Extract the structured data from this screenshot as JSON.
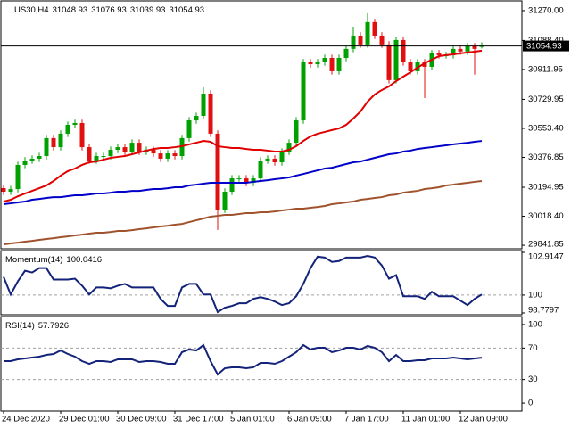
{
  "chart_data": [
    {
      "type": "candlestick",
      "title": "US30,H4",
      "categories": [
        "24 Dec 2020",
        null,
        null,
        null,
        null,
        null,
        null,
        null,
        "29 Dec 01:00",
        null,
        null,
        null,
        null,
        null,
        null,
        null,
        "30 Dec 09:00",
        null,
        null,
        null,
        null,
        null,
        null,
        null,
        "31 Dec 17:00",
        null,
        null,
        null,
        null,
        null,
        null,
        null,
        "5 Jan 01:00",
        null,
        null,
        null,
        null,
        null,
        null,
        null,
        "6 Jan 09:00",
        null,
        null,
        null,
        null,
        null,
        null,
        null,
        "7 Jan 17:00",
        null,
        null,
        null,
        null,
        null,
        null,
        null,
        "11 Jan 01:00",
        null,
        null,
        null,
        null,
        null,
        null,
        null,
        "12 Jan 09:00",
        null,
        null,
        null
      ],
      "open": [
        30190,
        30168,
        30184,
        30331,
        30358,
        30369,
        30385,
        30494,
        30439,
        30521,
        30575,
        30586,
        30439,
        30358,
        30385,
        30385,
        30423,
        30439,
        30412,
        30466,
        30412,
        30423,
        30401,
        30369,
        30401,
        30385,
        30494,
        30602,
        30629,
        30765,
        30521,
        30059,
        30168,
        30249,
        30249,
        30222,
        30249,
        30358,
        30369,
        30347,
        30412,
        30466,
        30602,
        30955,
        30944,
        30955,
        30982,
        30901,
        30982,
        31037,
        31118,
        31064,
        31200,
        31118,
        31064,
        30847,
        31091,
        30955,
        30901,
        30955,
        30928,
        31010,
        30999,
        30999,
        31037,
        31021,
        31053,
        31048.93
      ],
      "high": [
        30210,
        30204,
        30351,
        30378,
        30389,
        30405,
        30514,
        30514,
        30541,
        30595,
        30606,
        30606,
        30459,
        30405,
        30405,
        30443,
        30459,
        30459,
        30486,
        30486,
        30443,
        30443,
        30421,
        30421,
        30421,
        30514,
        30622,
        30649,
        30803,
        30785,
        30541,
        30188,
        30269,
        30269,
        30269,
        30269,
        30378,
        30389,
        30389,
        30432,
        30486,
        30622,
        30975,
        30975,
        30975,
        31002,
        31002,
        31002,
        31057,
        31172,
        31138,
        31254,
        31220,
        31138,
        31084,
        31111,
        31111,
        30975,
        30975,
        30975,
        31030,
        31030,
        31019,
        31057,
        31057,
        31073,
        31073,
        31076.93
      ],
      "low": [
        30148,
        30148,
        30164,
        30311,
        30338,
        30349,
        30365,
        30419,
        30419,
        30501,
        30555,
        30419,
        30338,
        30338,
        30365,
        30365,
        30403,
        30392,
        30392,
        30392,
        30392,
        30381,
        30349,
        30349,
        30365,
        30365,
        30474,
        30582,
        30609,
        30501,
        29935,
        30039,
        30148,
        30229,
        30202,
        30202,
        30229,
        30338,
        30327,
        30327,
        30392,
        30446,
        30582,
        30924,
        30924,
        30935,
        30881,
        30881,
        30962,
        31017,
        31044,
        31044,
        31098,
        31044,
        30827,
        30827,
        30935,
        30881,
        30881,
        30738,
        30908,
        30979,
        30979,
        30979,
        31001,
        31001,
        30880,
        31039.93
      ],
      "close": [
        30168,
        30184,
        30331,
        30358,
        30369,
        30385,
        30494,
        30439,
        30521,
        30575,
        30586,
        30439,
        30358,
        30385,
        30385,
        30423,
        30439,
        30412,
        30466,
        30412,
        30423,
        30401,
        30369,
        30401,
        30385,
        30494,
        30602,
        30629,
        30765,
        30521,
        30059,
        30168,
        30249,
        30249,
        30222,
        30249,
        30358,
        30369,
        30347,
        30412,
        30466,
        30602,
        30955,
        30944,
        30955,
        30982,
        30901,
        30982,
        31037,
        31118,
        31064,
        31200,
        31118,
        31064,
        30847,
        31091,
        30955,
        30901,
        30955,
        30928,
        31010,
        30999,
        30999,
        31037,
        31021,
        31053,
        31037,
        31054.93
      ],
      "up_color": "#00a000",
      "down_color": "#e01010",
      "series": [
        {
          "color": "#e00000",
          "values": [
            30108,
            30119,
            30140,
            30157,
            30173,
            30189,
            30206,
            30233,
            30266,
            30293,
            30309,
            30331,
            30347,
            30352,
            30363,
            30374,
            30380,
            30385,
            30396,
            30407,
            30418,
            30428,
            30434,
            30434,
            30439,
            30445,
            30456,
            30466,
            30477,
            30472,
            30445,
            30439,
            30434,
            30434,
            30428,
            30423,
            30423,
            30418,
            30412,
            30412,
            30423,
            30445,
            30477,
            30504,
            30521,
            30532,
            30543,
            30553,
            30575,
            30613,
            30656,
            30716,
            30760,
            30787,
            30809,
            30841,
            30868,
            30895,
            30923,
            30950,
            30971,
            30993,
            30999,
            31004,
            31010,
            31015,
            31020,
            31026
          ]
        },
        {
          "color": "#0000c8",
          "values": [
            30092,
            30097,
            30103,
            30108,
            30119,
            30124,
            30130,
            30135,
            30135,
            30141,
            30146,
            30146,
            30151,
            30157,
            30157,
            30162,
            30168,
            30168,
            30173,
            30173,
            30179,
            30184,
            30184,
            30189,
            30195,
            30195,
            30206,
            30211,
            30217,
            30222,
            30222,
            30222,
            30222,
            30222,
            30222,
            30228,
            30233,
            30238,
            30244,
            30249,
            30255,
            30266,
            30276,
            30287,
            30298,
            30309,
            30314,
            30325,
            30336,
            30347,
            30352,
            30363,
            30374,
            30385,
            30396,
            30401,
            30412,
            30418,
            30428,
            30434,
            30439,
            30445,
            30450,
            30456,
            30461,
            30466,
            30472,
            30477
          ]
        },
        {
          "color": "#a0522d",
          "values": [
            29847,
            29853,
            29858,
            29864,
            29869,
            29875,
            29880,
            29885,
            29891,
            29896,
            29902,
            29907,
            29913,
            29918,
            29918,
            29923,
            29929,
            29929,
            29934,
            29940,
            29945,
            29951,
            29956,
            29961,
            29967,
            29972,
            29983,
            29994,
            30005,
            30016,
            30021,
            30027,
            30027,
            30032,
            30038,
            30038,
            30043,
            30043,
            30048,
            30054,
            30059,
            30065,
            30065,
            30070,
            30075,
            30081,
            30092,
            30097,
            30103,
            30108,
            30119,
            30124,
            30130,
            30135,
            30146,
            30151,
            30162,
            30168,
            30173,
            30184,
            30189,
            30195,
            30206,
            30211,
            30217,
            30222,
            30228,
            30233
          ]
        }
      ],
      "ylim": [
        29826,
        31324
      ],
      "yticks": [
        {
          "value": 31270,
          "label": "31270.00"
        },
        {
          "value": 31088.4,
          "label": "31088.40"
        },
        30911.95,
        30729.95,
        {
          "value": 30553.4,
          "label": "30553.40"
        },
        30376.85,
        30194.95,
        {
          "value": 30018.4,
          "label": "30018.40"
        },
        29841.85
      ]
    },
    {
      "type": "line",
      "title": "Momentum(14)",
      "color": "#14237a",
      "values": [
        101.24,
        100.04,
        100.94,
        101.66,
        101.54,
        101.84,
        101.84,
        101.06,
        101.06,
        101.06,
        101.12,
        100.64,
        100.04,
        100.52,
        100.52,
        100.46,
        100.64,
        100.76,
        100.52,
        100.52,
        100.52,
        100.52,
        99.74,
        99.26,
        99.26,
        100.52,
        100.76,
        100.76,
        100.04,
        100.04,
        98.84,
        99.14,
        99.26,
        99.44,
        99.44,
        99.74,
        99.86,
        99.74,
        99.56,
        99.32,
        99.44,
        99.92,
        100.76,
        101.84,
        102.62,
        102.56,
        102.26,
        102.32,
        102.56,
        102.56,
        102.56,
        102.67,
        102.56,
        102.02,
        101.12,
        101.36,
        99.92,
        99.92,
        99.92,
        99.74,
        100.22,
        99.92,
        99.92,
        99.92,
        99.62,
        99.32,
        99.74,
        100.0416
      ],
      "ylim": [
        98.7797,
        102.9147
      ],
      "yticks": [
        102.9147,
        100,
        98.7797
      ],
      "levels": [
        100
      ]
    },
    {
      "type": "line",
      "title": "RSI(14)",
      "color": "#14237a",
      "values": [
        53.4,
        53.4,
        55.7,
        56.8,
        57.9,
        59.1,
        61.3,
        62.5,
        67.0,
        62.5,
        59.1,
        53.4,
        50.0,
        53.4,
        53.4,
        52.3,
        55.7,
        55.7,
        55.7,
        52.3,
        53.4,
        53.4,
        52.3,
        50.0,
        50.0,
        64.8,
        68.2,
        67.0,
        73.8,
        53.4,
        36.4,
        44.3,
        45.5,
        45.5,
        44.3,
        45.5,
        51.1,
        51.1,
        50.0,
        53.4,
        59.1,
        64.8,
        73.8,
        68.2,
        70.4,
        70.4,
        64.8,
        67.0,
        70.4,
        70.4,
        68.2,
        72.7,
        70.4,
        64.8,
        53.4,
        61.3,
        53.4,
        53.4,
        54.5,
        54.5,
        56.8,
        56.8,
        56.8,
        57.9,
        56.8,
        55.7,
        56.8,
        57.7926
      ],
      "ylim": [
        -9,
        109
      ],
      "yticks": [
        100,
        70,
        30,
        0
      ],
      "levels": [
        70,
        30
      ]
    }
  ]
}
